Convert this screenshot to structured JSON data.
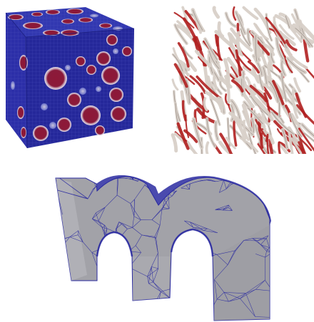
{
  "panels": [
    {
      "id": "cube",
      "icon": "mesh-cube-with-spherical-inclusions"
    },
    {
      "id": "fibers",
      "icon": "fiber-network-block"
    },
    {
      "id": "letter-m",
      "icon": "tetrahedral-mesh-letter-m"
    }
  ],
  "colors": {
    "cube_front": "#2c2fa8",
    "cube_top": "#3238b0",
    "cube_right": "#25289a",
    "cube_grid": "#5a60c8",
    "inclusion_fill": "#8e1838",
    "inclusion_halo": "#d4d2e4",
    "fiber_light": "#d8d0c8",
    "fiber_red": "#b02020",
    "mesh_face": "#a2a2a8",
    "mesh_edges": "#2a2aa0"
  }
}
